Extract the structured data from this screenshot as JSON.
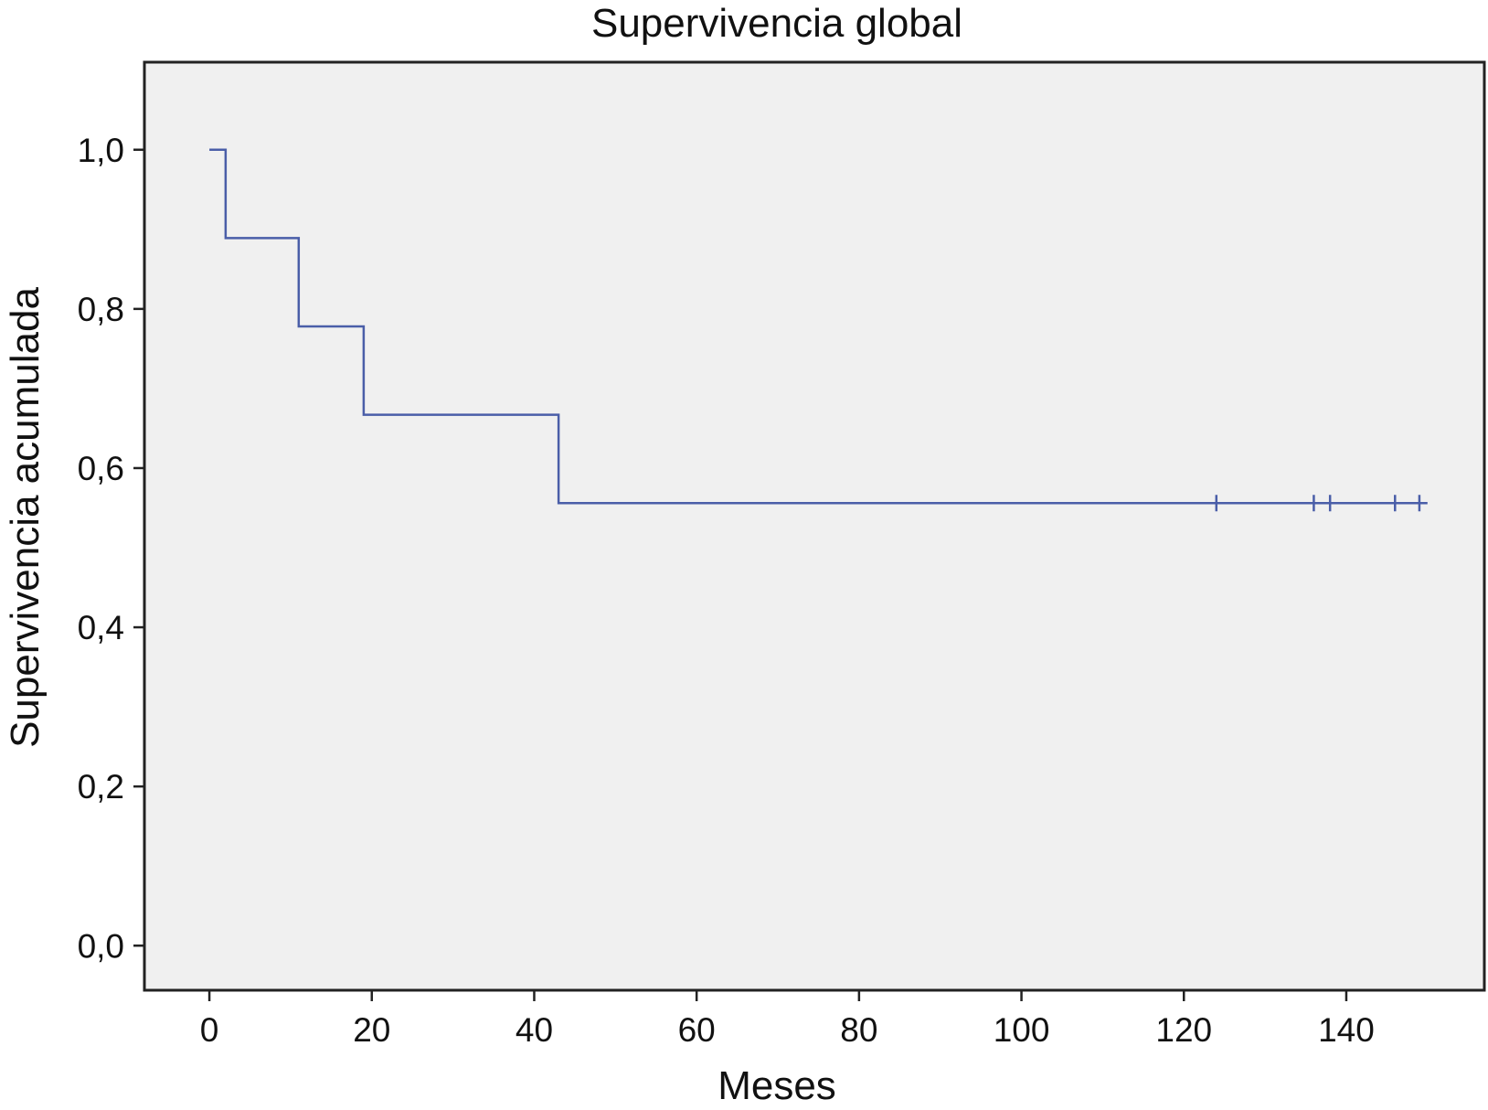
{
  "chart_data": {
    "type": "line",
    "title": "Supervivencia global",
    "xlabel": "Meses",
    "ylabel": "Supervivencia acumulada",
    "xlim": [
      -8,
      157
    ],
    "ylim": [
      -0.056,
      1.11
    ],
    "x_ticks": [
      0,
      20,
      40,
      60,
      80,
      100,
      120,
      140
    ],
    "x_tick_labels": [
      "0",
      "20",
      "40",
      "60",
      "80",
      "100",
      "120",
      "140"
    ],
    "y_ticks": [
      0.0,
      0.2,
      0.4,
      0.6,
      0.8,
      1.0
    ],
    "y_tick_labels": [
      "0,0",
      "0,2",
      "0,4",
      "0,6",
      "0,8",
      "1,0"
    ],
    "grid": false,
    "legend": "none",
    "series": [
      {
        "style": "step",
        "color": "#4a5ea8",
        "x": [
          0,
          2,
          11,
          19,
          43,
          150
        ],
        "y": [
          1.0,
          0.889,
          0.778,
          0.667,
          0.556,
          0.556
        ],
        "censored": [
          {
            "x": 124,
            "y": 0.556
          },
          {
            "x": 136,
            "y": 0.556
          },
          {
            "x": 138,
            "y": 0.556
          },
          {
            "x": 146,
            "y": 0.556
          },
          {
            "x": 149,
            "y": 0.556
          }
        ]
      }
    ],
    "colors": {
      "plot_background": "#f0f0f0",
      "frame": "#222222",
      "line": "#4a5ea8"
    }
  }
}
